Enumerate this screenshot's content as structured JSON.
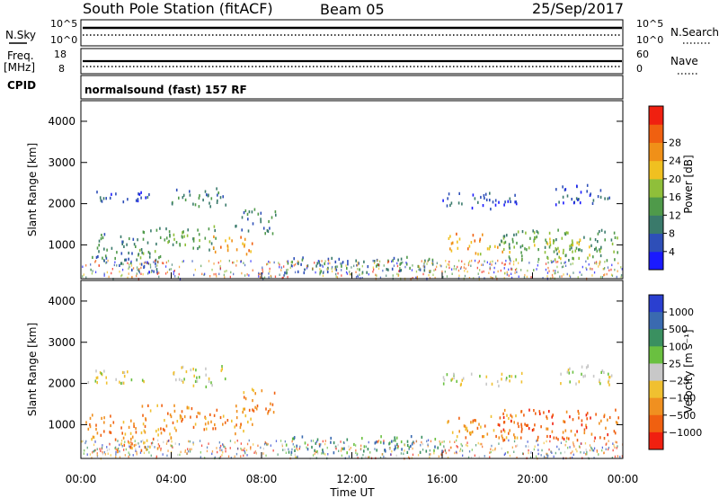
{
  "header": {
    "station": "South Pole Station (fitACF)",
    "beam": "Beam 05",
    "date": "25/Sep/2017"
  },
  "param_panel": {
    "nsky_label": "N.Sky",
    "nsky_ticks": [
      "10^5",
      "10^0"
    ],
    "nsearch_label": "N.Search",
    "nsearch_ticks": [
      "10^5",
      "10^0"
    ],
    "freq_label_1": "Freq.",
    "freq_label_2": "[MHz]",
    "freq_ticks": [
      "18",
      "8"
    ],
    "nave_label": "Nave",
    "nave_ticks": [
      "60",
      "0"
    ],
    "cpid_label": "CPID",
    "cpid_value": "normalsound (fast) 157 RF"
  },
  "colors": {
    "power": [
      "#1a1aff",
      "#2e4fb8",
      "#3a7a6b",
      "#4f9a4a",
      "#8fbf3a",
      "#f0c020",
      "#f09018",
      "#f06010",
      "#f02010"
    ],
    "velocity": [
      "#2a3fd0",
      "#3a6ab0",
      "#3a9060",
      "#6ac040",
      "#c8c8c8",
      "#f0c030",
      "#f09020",
      "#f06010",
      "#f02010"
    ]
  },
  "chart_data": [
    {
      "type": "heatmap",
      "name": "power",
      "xlabel": "Time UT",
      "ylabel": "Slant Range [km]",
      "xlim": [
        "00:00",
        "24:00"
      ],
      "ylim": [
        180,
        4500
      ],
      "x_ticks": [
        "00:00",
        "04:00",
        "08:00",
        "12:00",
        "16:00",
        "20:00",
        "00:00"
      ],
      "y_ticks": [
        1000,
        2000,
        3000,
        4000
      ],
      "colorbar_label": "Power [dB]",
      "colorbar_ticks": [
        "4",
        "8",
        "12",
        "16",
        "20",
        "24",
        "28"
      ],
      "patches": [
        {
          "t0": 0.2,
          "t1": 3.0,
          "r0": 2050,
          "r1": 2350,
          "level": 1
        },
        {
          "t0": 4.0,
          "t1": 6.5,
          "r0": 1900,
          "r1": 2400,
          "level": 2
        },
        {
          "t0": 0.2,
          "t1": 2.5,
          "r0": 650,
          "r1": 1300,
          "level": 2
        },
        {
          "t0": 2.5,
          "t1": 4.5,
          "r0": 700,
          "r1": 1500,
          "level": 3
        },
        {
          "t0": 4.5,
          "t1": 6.0,
          "r0": 900,
          "r1": 1500,
          "level": 3
        },
        {
          "t0": 5.8,
          "t1": 7.6,
          "r0": 800,
          "r1": 1250,
          "level": 6
        },
        {
          "t0": 6.8,
          "t1": 8.6,
          "r0": 1300,
          "r1": 1900,
          "level": 2
        },
        {
          "t0": 1.5,
          "t1": 3.5,
          "r0": 350,
          "r1": 700,
          "level": 1
        },
        {
          "t0": 9.0,
          "t1": 16.0,
          "r0": 350,
          "r1": 750,
          "level": 2
        },
        {
          "t0": 16.2,
          "t1": 17.8,
          "r0": 800,
          "r1": 1300,
          "level": 6
        },
        {
          "t0": 17.5,
          "t1": 19.0,
          "r0": 800,
          "r1": 1100,
          "level": 5
        },
        {
          "t0": 16.0,
          "t1": 19.5,
          "r0": 1900,
          "r1": 2300,
          "level": 1
        },
        {
          "t0": 18.5,
          "t1": 23.9,
          "r0": 650,
          "r1": 1400,
          "level": 3
        },
        {
          "t0": 20.0,
          "t1": 22.5,
          "r0": 700,
          "r1": 1200,
          "level": 4
        },
        {
          "t0": 21.0,
          "t1": 23.5,
          "r0": 2000,
          "r1": 2500,
          "level": 1
        }
      ]
    },
    {
      "type": "heatmap",
      "name": "velocity",
      "xlabel": "Time UT",
      "ylabel": "Slant Range [km]",
      "xlim": [
        "00:00",
        "24:00"
      ],
      "ylim": [
        180,
        4500
      ],
      "x_ticks": [
        "00:00",
        "04:00",
        "08:00",
        "12:00",
        "16:00",
        "20:00",
        "00:00"
      ],
      "y_ticks": [
        1000,
        2000,
        3000,
        4000
      ],
      "colorbar_label": "Velocity [m s⁻¹]",
      "colorbar_ticks": [
        "1000",
        "500",
        "100",
        "25",
        "−25",
        "−100",
        "−500",
        "−1000"
      ],
      "patches": [
        {
          "t0": 0.2,
          "t1": 3.0,
          "r0": 2000,
          "r1": 2350,
          "level": 4
        },
        {
          "t0": 4.0,
          "t1": 6.5,
          "r0": 1950,
          "r1": 2450,
          "level": 4
        },
        {
          "t0": 0.2,
          "t1": 2.5,
          "r0": 650,
          "r1": 1300,
          "level": 6
        },
        {
          "t0": 2.5,
          "t1": 4.5,
          "r0": 700,
          "r1": 1500,
          "level": 6
        },
        {
          "t0": 4.5,
          "t1": 6.0,
          "r0": 900,
          "r1": 1500,
          "level": 6
        },
        {
          "t0": 5.8,
          "t1": 7.6,
          "r0": 800,
          "r1": 1250,
          "level": 6
        },
        {
          "t0": 6.8,
          "t1": 8.6,
          "r0": 1300,
          "r1": 1900,
          "level": 6
        },
        {
          "t0": 1.5,
          "t1": 3.5,
          "r0": 350,
          "r1": 700,
          "level": 6
        },
        {
          "t0": 9.0,
          "t1": 16.0,
          "r0": 350,
          "r1": 750,
          "level": 2
        },
        {
          "t0": 16.2,
          "t1": 19.5,
          "r0": 700,
          "r1": 1300,
          "level": 6
        },
        {
          "t0": 16.0,
          "t1": 19.5,
          "r0": 1950,
          "r1": 2300,
          "level": 4
        },
        {
          "t0": 18.5,
          "t1": 23.9,
          "r0": 650,
          "r1": 1400,
          "level": 7
        },
        {
          "t0": 21.0,
          "t1": 23.5,
          "r0": 2000,
          "r1": 2500,
          "level": 4
        }
      ]
    }
  ]
}
